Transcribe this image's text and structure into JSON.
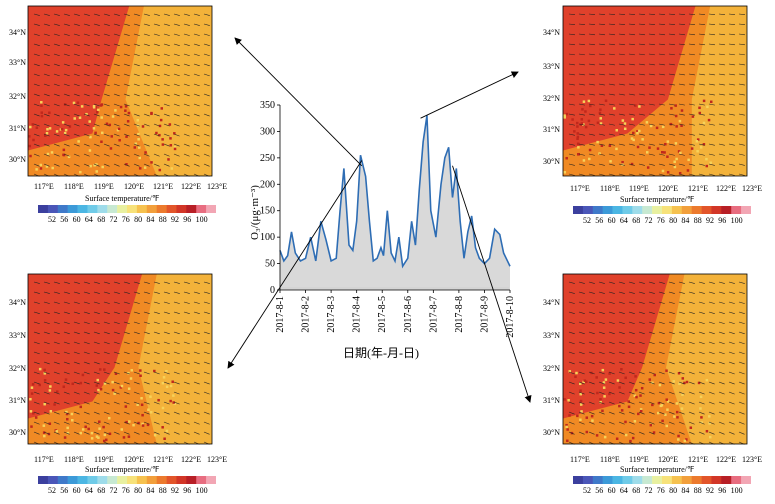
{
  "colors": {
    "line": "#2e6db4",
    "fill": "#d9d9d9",
    "map_hot": "#e0412b",
    "map_warm": "#f08a24",
    "map_mid": "#f3b23a",
    "map_cool": "#f7d25a"
  },
  "maps": [
    {
      "id": "top-left",
      "lat_labels": [
        "34°N",
        "33°N",
        "32°N",
        "31°N",
        "30°N"
      ],
      "lon_labels": [
        "117°E",
        "118°E",
        "119°E",
        "120°E",
        "121°E",
        "122°E",
        "123°E"
      ],
      "colorbar_title": "Surface temperature/℉",
      "colorbar_ticks": [
        "52",
        "56",
        "60",
        "64",
        "68",
        "72",
        "76",
        "80",
        "84",
        "88",
        "92",
        "96",
        "100"
      ]
    },
    {
      "id": "top-right",
      "lat_labels": [
        "34°N",
        "33°N",
        "32°N",
        "31°N",
        "30°N"
      ],
      "lon_labels": [
        "117°E",
        "118°E",
        "119°E",
        "120°E",
        "121°E",
        "122°E",
        "123°E"
      ],
      "colorbar_title": "Surface temperature/℉",
      "colorbar_ticks": [
        "52",
        "56",
        "60",
        "64",
        "68",
        "72",
        "76",
        "80",
        "84",
        "88",
        "92",
        "96",
        "100"
      ]
    },
    {
      "id": "bottom-left",
      "lat_labels": [
        "34°N",
        "33°N",
        "32°N",
        "31°N",
        "30°N"
      ],
      "lon_labels": [
        "117°E",
        "118°E",
        "119°E",
        "120°E",
        "121°E",
        "122°E",
        "123°E"
      ],
      "colorbar_title": "Surface temperature/℉",
      "colorbar_ticks": [
        "52",
        "56",
        "60",
        "64",
        "68",
        "72",
        "76",
        "80",
        "84",
        "88",
        "92",
        "96",
        "100"
      ]
    },
    {
      "id": "bottom-right",
      "lat_labels": [
        "34°N",
        "33°N",
        "32°N",
        "31°N",
        "30°N"
      ],
      "lon_labels": [
        "117°E",
        "118°E",
        "119°E",
        "120°E",
        "121°E",
        "122°E",
        "123°E"
      ],
      "colorbar_title": "Surface temperature/℉",
      "colorbar_ticks": [
        "52",
        "56",
        "60",
        "64",
        "68",
        "72",
        "76",
        "80",
        "84",
        "88",
        "92",
        "96",
        "100"
      ]
    }
  ],
  "chart_data": {
    "type": "area",
    "title": "",
    "xlabel": "日期(年-月-日)",
    "ylabel": "O₃/(μg·m⁻³)",
    "ylim": [
      0,
      350
    ],
    "yticks": [
      "0",
      "50",
      "100",
      "150",
      "200",
      "250",
      "300",
      "350"
    ],
    "x_tick_labels": [
      "2017-8-1",
      "2017-8-2",
      "2017-8-3",
      "2017-8-4",
      "2017-8-5",
      "2017-8-6",
      "2017-8-7",
      "2017-8-8",
      "2017-8-9",
      "2017-8-10"
    ],
    "xlim": [
      0,
      9
    ],
    "series": [
      {
        "name": "O3",
        "x": [
          0,
          0.15,
          0.3,
          0.45,
          0.6,
          0.8,
          1.0,
          1.2,
          1.4,
          1.6,
          1.8,
          2.0,
          2.2,
          2.35,
          2.5,
          2.7,
          2.85,
          3.0,
          3.15,
          3.35,
          3.5,
          3.65,
          3.8,
          3.95,
          4.05,
          4.2,
          4.35,
          4.5,
          4.65,
          4.8,
          5.0,
          5.15,
          5.3,
          5.45,
          5.6,
          5.75,
          5.9,
          6.1,
          6.3,
          6.45,
          6.6,
          6.75,
          6.9,
          7.05,
          7.2,
          7.35,
          7.5,
          7.65,
          7.8,
          8.0,
          8.2,
          8.4,
          8.6,
          8.75,
          8.9,
          9.0
        ],
        "values": [
          75,
          55,
          65,
          110,
          70,
          55,
          60,
          100,
          55,
          130,
          95,
          55,
          60,
          150,
          230,
          85,
          75,
          130,
          255,
          215,
          130,
          55,
          60,
          80,
          65,
          150,
          70,
          55,
          100,
          45,
          60,
          130,
          85,
          190,
          280,
          330,
          150,
          100,
          200,
          250,
          270,
          175,
          230,
          130,
          60,
          110,
          140,
          80,
          60,
          50,
          60,
          115,
          105,
          70,
          55,
          45
        ]
      }
    ],
    "annotations": [
      {
        "from_x": 3.2,
        "from_y": 235,
        "to": "top-left"
      },
      {
        "from_x": 3.2,
        "from_y": 245,
        "to": "bottom-left"
      },
      {
        "from_x": 5.5,
        "from_y": 325,
        "to": "top-right"
      },
      {
        "from_x": 6.75,
        "from_y": 235,
        "to": "bottom-right"
      }
    ]
  }
}
